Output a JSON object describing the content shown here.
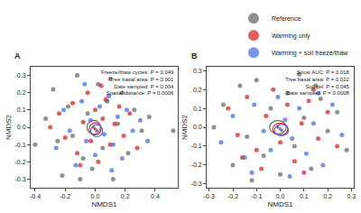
{
  "chart_data": [
    {
      "type": "scatter",
      "title": "A",
      "x_label": "NMDS1",
      "y_label": "NMDS2",
      "annotations": [
        "Freeze/thaw cycles: P = 0.049",
        "Tree basal area: P = 0.001",
        "Date sampled: P = 0.004",
        "Spatial distance: P = 0.0006"
      ],
      "xlim": [
        -0.43,
        0.55
      ],
      "ylim": [
        -0.35,
        0.35
      ],
      "xticks": [
        -0.4,
        -0.2,
        {
          "value": 0,
          "label": "0.0"
        },
        0.2,
        0.4
      ],
      "yticks": [
        -0.3,
        -0.2,
        -0.1,
        {
          "value": 0,
          "label": "0.0"
        },
        0.1,
        0.2,
        0.3
      ],
      "grid": false,
      "legend": "top right",
      "series": [
        {
          "name": "Reference",
          "color": "#6b6b6b",
          "x": [
            -0.4,
            -0.33,
            -0.28,
            -0.22,
            -0.18,
            -0.15,
            -0.12,
            -0.08,
            -0.05,
            -0.02,
            0.02,
            0.05,
            0.08,
            0.12,
            0.15,
            0.18,
            0.22,
            0.26,
            0.31,
            0.36,
            0.52,
            -0.25,
            0.1,
            -0.1
          ],
          "values": [
            -0.1,
            0.05,
            0.22,
            -0.28,
            0.12,
            -0.05,
            0.3,
            -0.18,
            0.08,
            -0.24,
            0.25,
            -0.12,
            0.15,
            -0.3,
            0.02,
            0.2,
            -0.15,
            0.1,
            -0.02,
            0.06,
            -0.02,
            -0.08,
            0.28,
            -0.3
          ],
          "ellipse": {
            "x": -0.01,
            "y": 0.0,
            "rx": 0.045,
            "ry": 0.04
          }
        },
        {
          "name": "Warming only",
          "color": "#d62728",
          "x": [
            -0.3,
            -0.24,
            -0.2,
            -0.15,
            -0.12,
            -0.08,
            -0.05,
            -0.03,
            0.0,
            0.02,
            0.05,
            0.07,
            0.1,
            0.13,
            0.16,
            0.19,
            0.23,
            0.28,
            -0.1,
            0.04
          ],
          "values": [
            0.0,
            0.08,
            -0.06,
            0.14,
            -0.15,
            0.03,
            0.2,
            -0.08,
            0.1,
            -0.2,
            0.05,
            0.16,
            -0.1,
            0.02,
            0.12,
            -0.05,
            0.08,
            -0.12,
            -0.22,
            0.24
          ],
          "ellipse": {
            "x": 0.0,
            "y": -0.01,
            "rx": 0.04,
            "ry": 0.035
          }
        },
        {
          "name": "Warming + soil freeze/thaw",
          "color": "#4a6fe3",
          "x": [
            -0.26,
            -0.21,
            -0.17,
            -0.13,
            -0.09,
            -0.06,
            -0.03,
            0.0,
            0.03,
            0.06,
            0.09,
            0.12,
            0.15,
            0.18,
            0.21,
            0.25,
            0.3,
            0.35,
            -0.07,
            0.11
          ],
          "values": [
            -0.12,
            0.1,
            -0.02,
            -0.22,
            0.15,
            -0.08,
            0.04,
            -0.16,
            0.12,
            -0.04,
            0.18,
            -0.1,
            0.06,
            -0.18,
            0.1,
            -0.02,
            0.04,
            -0.08,
            0.25,
            -0.25
          ],
          "ellipse": {
            "x": 0.01,
            "y": -0.02,
            "rx": 0.04,
            "ry": 0.035
          }
        }
      ]
    },
    {
      "type": "scatter",
      "title": "B",
      "x_label": "NMDS1",
      "y_label": "NMDS2",
      "annotations": [
        "Snow AUC: P = 0.018",
        "Tree basal area: P = 0.022",
        "Soil pH: P = 0.045",
        "Date sampled: P = 0.0008"
      ],
      "xlim": [
        -0.31,
        0.31
      ],
      "ylim": [
        -0.32,
        0.32
      ],
      "xticks": [
        -0.3,
        -0.2,
        -0.1,
        {
          "value": 0,
          "label": "0.0"
        },
        0.1,
        0.2,
        0.3
      ],
      "yticks": [
        -0.3,
        -0.2,
        -0.1,
        {
          "value": 0,
          "label": "0.0"
        },
        0.1,
        0.2,
        0.3
      ],
      "grid": false,
      "series": [
        {
          "name": "Reference",
          "color": "#6b6b6b",
          "x": [
            -0.28,
            -0.24,
            -0.2,
            -0.17,
            -0.14,
            -0.1,
            -0.07,
            -0.04,
            0.0,
            0.03,
            0.06,
            0.1,
            0.13,
            0.17,
            0.2,
            0.24,
            0.28,
            -0.12,
            0.08,
            0.15
          ],
          "values": [
            0.0,
            0.12,
            -0.2,
            0.22,
            -0.05,
            0.25,
            -0.15,
            0.1,
            -0.25,
            0.18,
            -0.1,
            0.05,
            -0.22,
            0.15,
            -0.02,
            0.08,
            -0.12,
            -0.28,
            0.28,
            0.22
          ],
          "ellipse": {
            "x": -0.01,
            "y": 0.0,
            "rx": 0.035,
            "ry": 0.035
          }
        },
        {
          "name": "Warming only",
          "color": "#d62728",
          "x": [
            -0.22,
            -0.18,
            -0.14,
            -0.1,
            -0.06,
            -0.03,
            0.0,
            0.03,
            0.06,
            0.09,
            0.12,
            0.16,
            0.2,
            0.24,
            -0.08,
            0.1,
            -0.16,
            0.14
          ],
          "values": [
            0.1,
            -0.04,
            0.16,
            -0.12,
            0.06,
            0.2,
            -0.08,
            0.12,
            -0.18,
            0.02,
            0.14,
            -0.06,
            0.08,
            -0.1,
            -0.22,
            -0.24,
            -0.16,
            0.2
          ],
          "ellipse": {
            "x": 0.0,
            "y": -0.01,
            "rx": 0.032,
            "ry": 0.032
          }
        },
        {
          "name": "Warming + soil freeze/thaw",
          "color": "#4a6fe3",
          "x": [
            -0.25,
            -0.2,
            -0.15,
            -0.11,
            -0.07,
            -0.04,
            -0.01,
            0.02,
            0.05,
            0.08,
            0.11,
            0.14,
            0.18,
            0.22,
            0.26,
            -0.12,
            0.04,
            0.16
          ],
          "values": [
            -0.08,
            0.06,
            -0.16,
            0.12,
            -0.02,
            -0.12,
            0.16,
            0.04,
            -0.06,
            0.1,
            -0.14,
            0.02,
            -0.2,
            0.12,
            -0.04,
            -0.24,
            -0.26,
            0.18
          ],
          "ellipse": {
            "x": 0.005,
            "y": -0.015,
            "rx": 0.03,
            "ry": 0.03
          }
        }
      ]
    }
  ]
}
